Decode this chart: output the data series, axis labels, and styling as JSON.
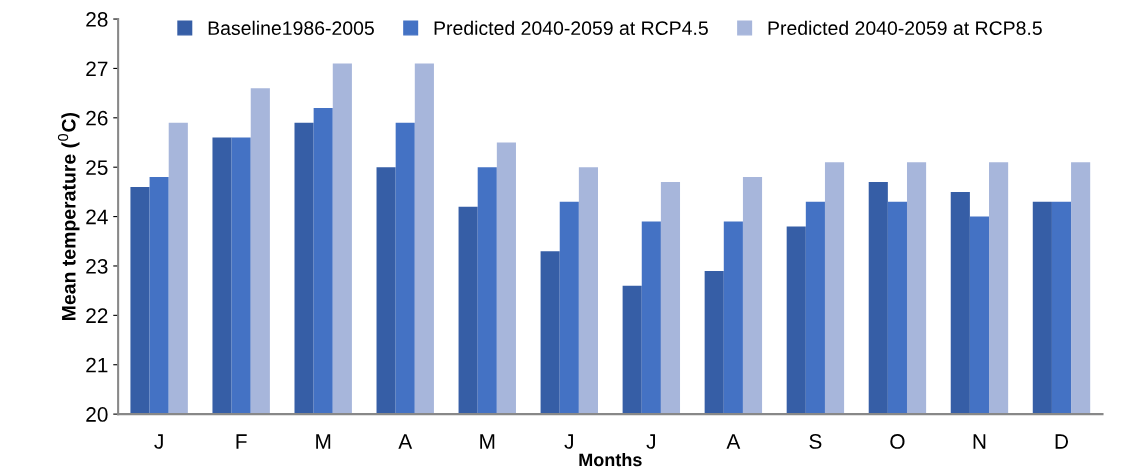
{
  "chart_data": {
    "type": "bar",
    "xlabel": "Months",
    "ylabel": "Mean temperature ($^{0}$C)",
    "categories": [
      "J",
      "F",
      "M",
      "A",
      "M",
      "J",
      "J",
      "A",
      "S",
      "O",
      "N",
      "D"
    ],
    "series": [
      {
        "name": "Baseline1986-2005",
        "color": "#365ea6",
        "values": [
          24.6,
          25.6,
          25.9,
          25.0,
          24.2,
          23.3,
          22.6,
          22.9,
          23.8,
          24.7,
          24.5,
          24.3
        ]
      },
      {
        "name": "Predicted 2040-2059 at RCP4.5",
        "color": "#4472c4",
        "values": [
          24.8,
          25.6,
          26.2,
          25.9,
          25.0,
          24.3,
          23.9,
          23.9,
          24.3,
          24.3,
          24.0,
          24.3
        ]
      },
      {
        "name": "Predicted 2040-2059 at RCP8.5",
        "color": "#a7b6db",
        "values": [
          25.9,
          26.6,
          27.1,
          27.1,
          25.5,
          25.0,
          24.7,
          24.8,
          25.1,
          25.1,
          25.1,
          25.1
        ]
      }
    ],
    "ylim": [
      20,
      28
    ],
    "yticks": [
      20,
      21,
      22,
      23,
      24,
      25,
      26,
      27,
      28
    ],
    "grid": false,
    "legend": "top"
  }
}
